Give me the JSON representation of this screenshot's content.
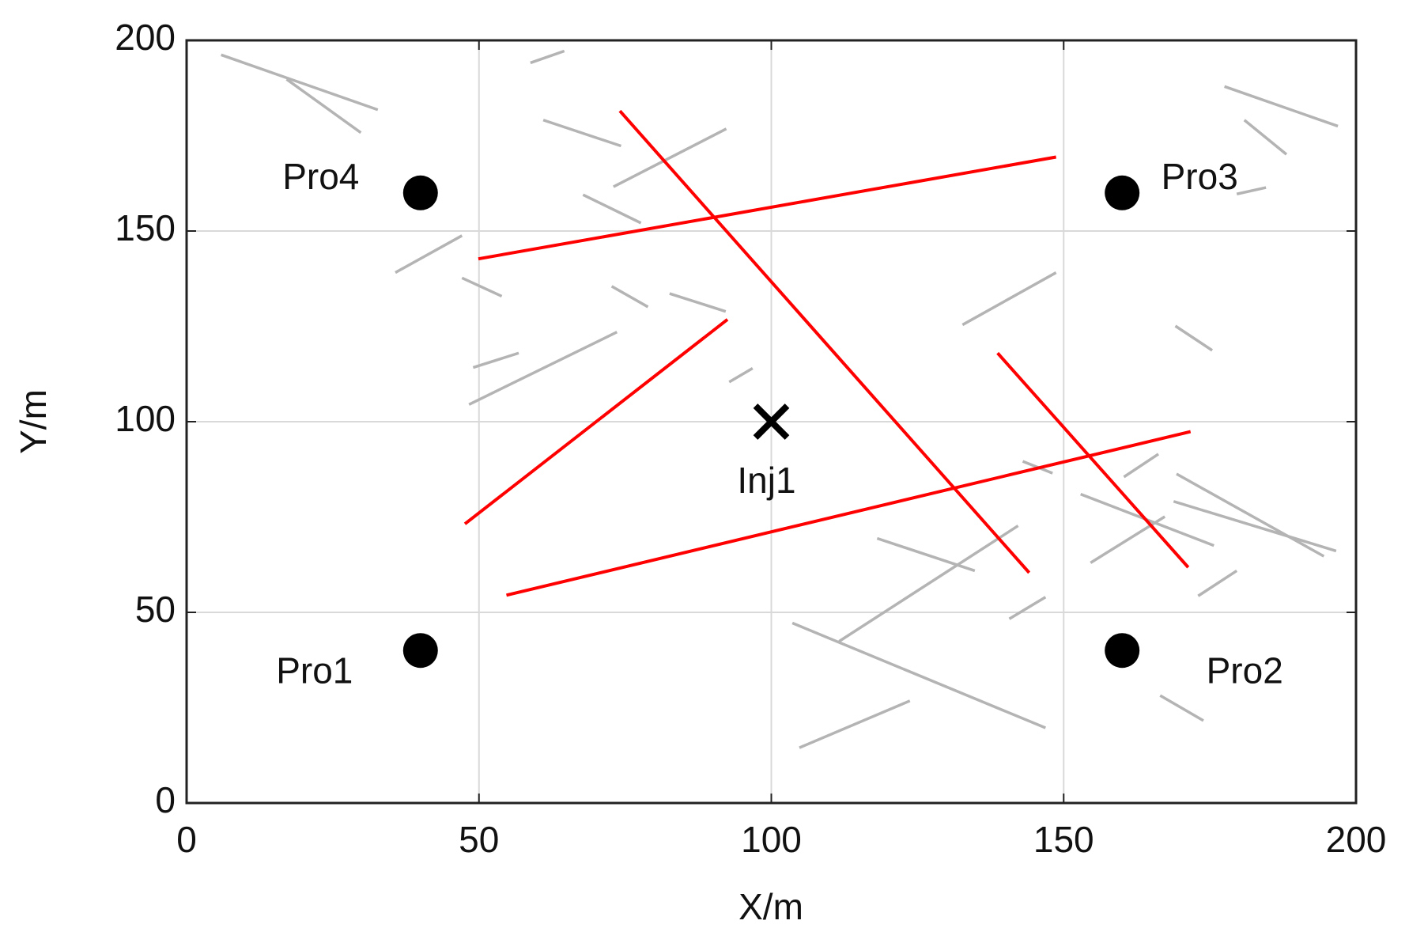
{
  "chart_data": {
    "type": "fracture-map",
    "xlabel": "X/m",
    "ylabel": "Y/m",
    "xlim": [
      0,
      200
    ],
    "ylim": [
      0,
      200
    ],
    "xticks": [
      0,
      50,
      100,
      150,
      200
    ],
    "yticks": [
      0,
      50,
      100,
      150,
      200
    ],
    "grid": true,
    "fractures": [
      {
        "color": "#b4b4b4",
        "segments": [
          {
            "x": [
              5.9,
              32.7
            ],
            "y": [
              196.2,
              181.8
            ]
          },
          {
            "x": [
              17.1,
              29.8
            ],
            "y": [
              189.8,
              175.8
            ]
          },
          {
            "x": [
              58.8,
              64.6
            ],
            "y": [
              194.1,
              197.2
            ]
          },
          {
            "x": [
              61,
              74.3
            ],
            "y": [
              179.1,
              172.3
            ]
          },
          {
            "x": [
              73,
              92.3
            ],
            "y": [
              161.6,
              176.8
            ]
          },
          {
            "x": [
              67.8,
              77.7
            ],
            "y": [
              159.5,
              152.1
            ]
          },
          {
            "x": [
              35.7,
              47.1
            ],
            "y": [
              139.1,
              148.8
            ]
          },
          {
            "x": [
              47.1,
              53.9
            ],
            "y": [
              137.7,
              132.9
            ]
          },
          {
            "x": [
              72.7,
              78.9
            ],
            "y": [
              135.5,
              130.1
            ]
          },
          {
            "x": [
              82.6,
              92.2
            ],
            "y": [
              133.6,
              128.9
            ]
          },
          {
            "x": [
              49,
              56.8
            ],
            "y": [
              114.2,
              118
            ]
          },
          {
            "x": [
              48.3,
              73.6
            ],
            "y": [
              104.5,
              123.5
            ]
          },
          {
            "x": [
              92.8,
              96.8
            ],
            "y": [
              110.4,
              114
            ]
          },
          {
            "x": [
              132.7,
              148.7
            ],
            "y": [
              125.4,
              139.1
            ]
          },
          {
            "x": [
              169.1,
              175.4
            ],
            "y": [
              125.1,
              118.7
            ]
          },
          {
            "x": [
              177.5,
              196.9
            ],
            "y": [
              187.9,
              177.5
            ]
          },
          {
            "x": [
              180.9,
              188.1
            ],
            "y": [
              179.1,
              170.1
            ]
          },
          {
            "x": [
              179.6,
              184.6
            ],
            "y": [
              159.7,
              161.4
            ]
          },
          {
            "x": [
              143,
              148.1
            ],
            "y": [
              89.6,
              86.5
            ]
          },
          {
            "x": [
              152.9,
              175.7
            ],
            "y": [
              81,
              67.5
            ]
          },
          {
            "x": [
              169.3,
              194.5
            ],
            "y": [
              86.3,
              64.7
            ]
          },
          {
            "x": [
              168.8,
              196.6
            ],
            "y": [
              79.1,
              66.1
            ]
          },
          {
            "x": [
              160.3,
              166.2
            ],
            "y": [
              85.5,
              91.5
            ]
          },
          {
            "x": [
              154.6,
              167.3
            ],
            "y": [
              63,
              75.1
            ]
          },
          {
            "x": [
              173,
              179.6
            ],
            "y": [
              54.3,
              60.9
            ]
          },
          {
            "x": [
              166.5,
              173.9
            ],
            "y": [
              28.2,
              21.6
            ]
          },
          {
            "x": [
              118.1,
              134.8
            ],
            "y": [
              69.4,
              60.9
            ]
          },
          {
            "x": [
              111.6,
              142.2
            ],
            "y": [
              42.4,
              72.7
            ]
          },
          {
            "x": [
              103.6,
              146.9
            ],
            "y": [
              47.2,
              19.7
            ]
          },
          {
            "x": [
              104.8,
              123.7
            ],
            "y": [
              14.5,
              26.8
            ]
          },
          {
            "x": [
              140.7,
              146.9
            ],
            "y": [
              48.3,
              54
            ]
          }
        ]
      },
      {
        "color": "#ff0000",
        "segments": [
          {
            "x": [
              49.9,
              148.7
            ],
            "y": [
              142.7,
              169.4
            ]
          },
          {
            "x": [
              74.1,
              144.1
            ],
            "y": [
              181.5,
              60.4
            ]
          },
          {
            "x": [
              47.6,
              92.5
            ],
            "y": [
              73.2,
              126.8
            ]
          },
          {
            "x": [
              54.7,
              171.7
            ],
            "y": [
              54.5,
              97.4
            ]
          },
          {
            "x": [
              138.7,
              171.3
            ],
            "y": [
              118,
              61.8
            ]
          }
        ]
      }
    ],
    "wells": [
      {
        "label": "Pro1",
        "x": 40,
        "y": 40,
        "marker": "circle"
      },
      {
        "label": "Pro2",
        "x": 160,
        "y": 40,
        "marker": "circle"
      },
      {
        "label": "Pro3",
        "x": 160,
        "y": 160,
        "marker": "circle"
      },
      {
        "label": "Pro4",
        "x": 40,
        "y": 160,
        "marker": "circle"
      },
      {
        "label": "Inj1",
        "x": 100,
        "y": 100,
        "marker": "cross"
      }
    ]
  }
}
